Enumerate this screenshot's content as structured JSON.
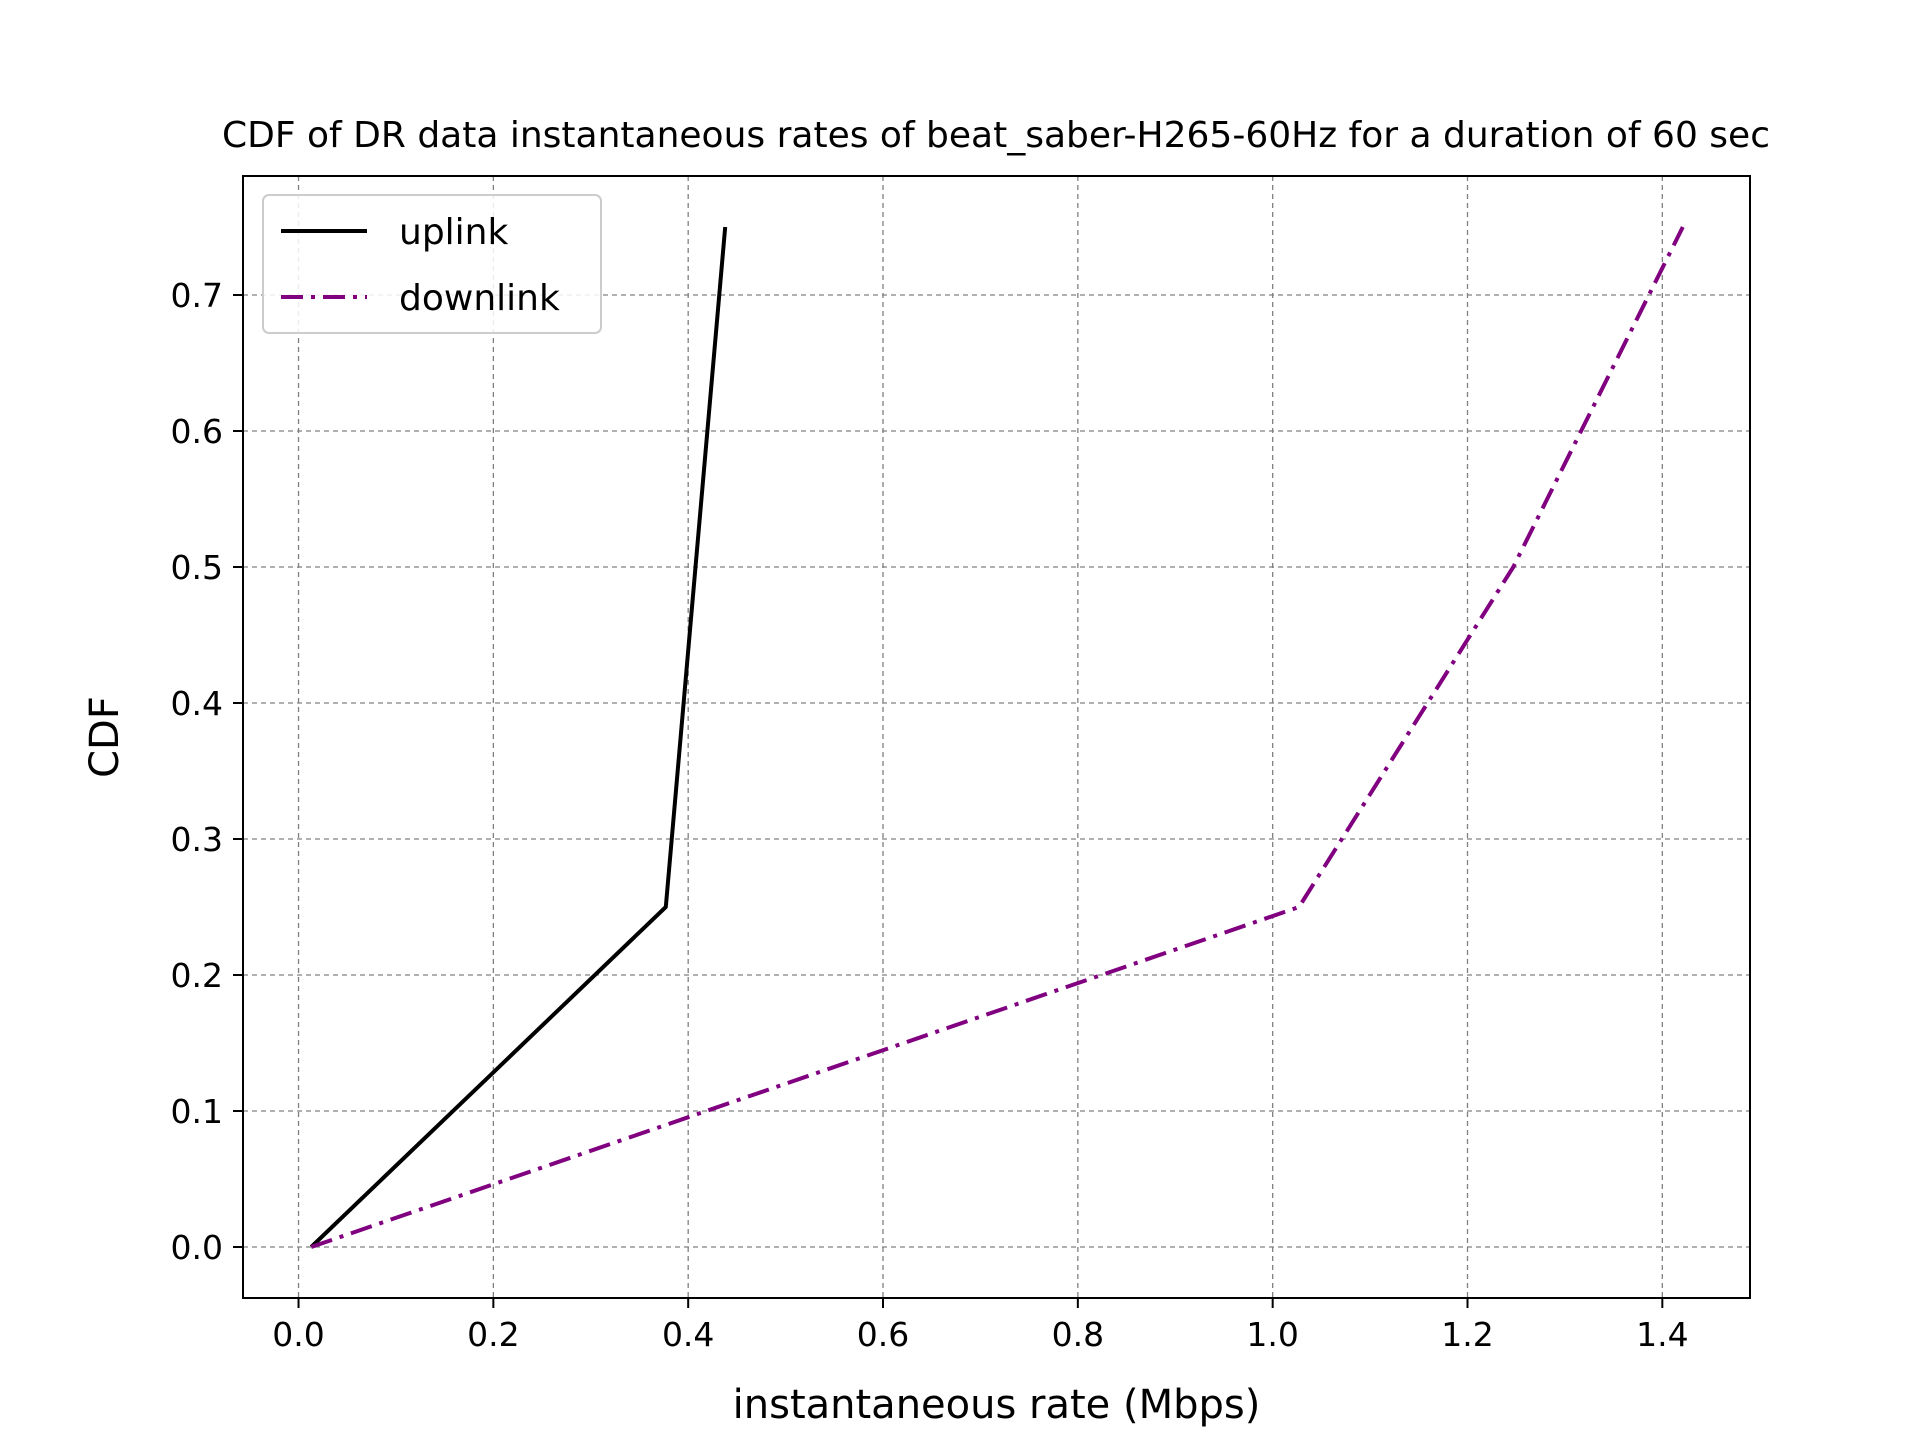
{
  "chart_data": {
    "type": "line",
    "title": "CDF of DR data instantaneous rates of beat_saber-H265-60Hz for a duration of 60 sec",
    "xlabel": "instantaneous rate (Mbps)",
    "ylabel": "CDF",
    "xlim": [
      -0.057,
      1.49
    ],
    "ylim": [
      -0.0375,
      0.7875
    ],
    "xticks": [
      "0.0",
      "0.2",
      "0.4",
      "0.6",
      "0.8",
      "1.0",
      "1.2",
      "1.4"
    ],
    "yticks": [
      "0.0",
      "0.1",
      "0.2",
      "0.3",
      "0.4",
      "0.5",
      "0.6",
      "0.7"
    ],
    "grid": true,
    "legend_position": "top-left",
    "series": [
      {
        "name": "uplink",
        "color": "#000000",
        "style": "solid",
        "x": [
          0.013,
          0.377,
          0.438
        ],
        "y": [
          0.0,
          0.25,
          0.75
        ]
      },
      {
        "name": "downlink",
        "color": "#800080",
        "style": "dashdot",
        "x": [
          0.013,
          1.027,
          1.247,
          1.421
        ],
        "y": [
          0.0,
          0.25,
          0.5,
          0.75
        ]
      }
    ]
  }
}
